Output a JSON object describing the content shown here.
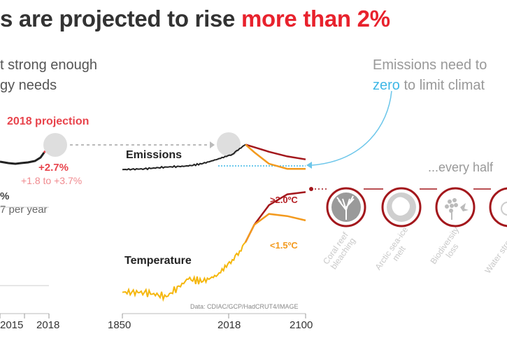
{
  "title": {
    "text": "s are projected to rise ",
    "highlight": "more than 2%"
  },
  "left_text": {
    "line1": "t strong enough",
    "line2": "gy needs"
  },
  "projection": {
    "label": "2018 projection",
    "pct": "+2.7%",
    "range": "+1.8 to +3.7%"
  },
  "left_stat": {
    "value": "%",
    "caption": "7 per year"
  },
  "left_axis": [
    "2015",
    "2018"
  ],
  "right_text": {
    "line1": "Emissions need to",
    "line2_zero": "zero",
    "line2_rest": " to limit climat"
  },
  "panels": {
    "emissions_label": "Emissions",
    "temperature_label": "Temperature",
    "temp_high": ">2.0ºC",
    "temp_low": "<1.5ºC",
    "source": "Data: CDIAC/GCP/HadCRUT4/IMAGE"
  },
  "x_axis": [
    "1850",
    "2018",
    "2100"
  ],
  "every_half": "...every half",
  "impacts": [
    {
      "label": "Coral reef bleaching",
      "icon": "coral-icon"
    },
    {
      "label": "Arctic sea-ice melt",
      "icon": "sea-ice-icon"
    },
    {
      "label": "Biodiversity loss",
      "icon": "biodiversity-icon"
    },
    {
      "label": "Water stre",
      "icon": "water-icon"
    }
  ],
  "colors": {
    "accent": "#e8222d",
    "history": "#222222",
    "high_path": "#a3171c",
    "low_path": "#f39a1e",
    "zero_line": "#3fb7e6",
    "temperature_obs": "#f5b70d"
  },
  "chart_data": [
    {
      "type": "line",
      "title": "Emissions",
      "x": [
        1850,
        1880,
        1910,
        1940,
        1960,
        1980,
        2000,
        2010,
        2018,
        2030,
        2050,
        2075,
        2100
      ],
      "series": [
        {
          "values": [
            0.2,
            0.5,
            1.2,
            1.6,
            2.6,
            4.3,
            6.2,
            8.5,
            10.0,
            null,
            null,
            null,
            null
          ]
        },
        {
          "values": [
            null,
            null,
            null,
            null,
            null,
            null,
            null,
            null,
            10.0,
            9.0,
            7.2,
            5.4,
            4.2
          ]
        },
        {
          "values": [
            null,
            null,
            null,
            null,
            null,
            null,
            null,
            null,
            10.0,
            7.0,
            2.5,
            0.5,
            0.5
          ]
        }
      ],
      "xlim": [
        1850,
        2100
      ],
      "ylim": [
        0,
        11
      ]
    },
    {
      "type": "line",
      "title": "Temperature",
      "x": [
        1850,
        1880,
        1910,
        1940,
        1960,
        1980,
        2000,
        2010,
        2018,
        2030,
        2050,
        2075,
        2100
      ],
      "series": [
        {
          "values": [
            -0.3,
            -0.3,
            -0.4,
            0.0,
            -0.05,
            0.1,
            0.45,
            0.65,
            0.85,
            null,
            null,
            null,
            null
          ]
        },
        {
          "name": ">2.0ºC",
          "values": [
            null,
            null,
            null,
            null,
            null,
            null,
            null,
            null,
            0.85,
            1.25,
            1.7,
            1.95,
            2.0
          ]
        },
        {
          "name": "<1.5ºC",
          "values": [
            null,
            null,
            null,
            null,
            null,
            null,
            null,
            null,
            0.85,
            1.25,
            1.5,
            1.45,
            1.35
          ]
        }
      ],
      "xlim": [
        1850,
        2100
      ],
      "ylim": [
        -0.5,
        2.2
      ]
    }
  ]
}
